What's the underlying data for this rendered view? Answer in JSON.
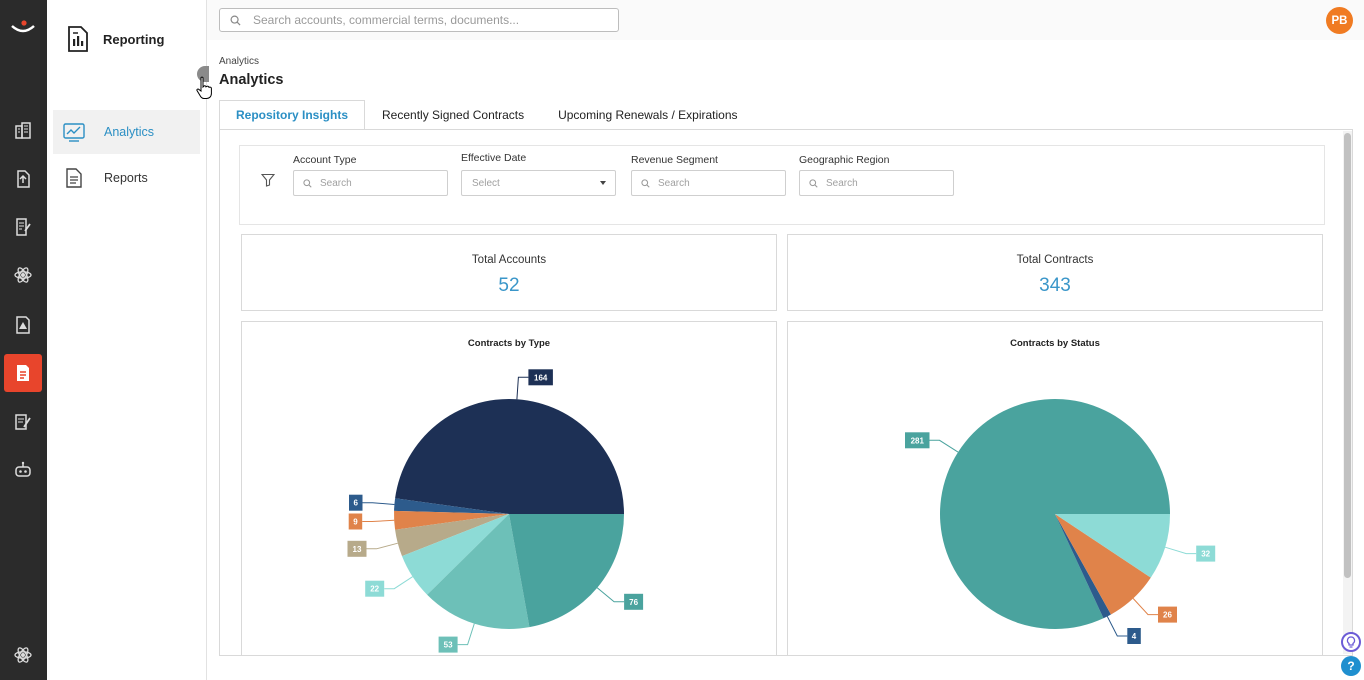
{
  "module": {
    "title": "Reporting",
    "icon": "report-icon"
  },
  "sidebar": {
    "items": [
      {
        "label": "Analytics",
        "icon": "analytics-icon",
        "active": true
      },
      {
        "label": "Reports",
        "icon": "document-icon",
        "active": false
      }
    ]
  },
  "rail": {
    "items": [
      "buildings-icon",
      "upload-icon",
      "contract-edit-icon",
      "settings-atom-icon",
      "alert-document-icon",
      "report-icon",
      "signature-icon",
      "robot-icon"
    ],
    "active_index": 5,
    "bottom_icon": "settings-atom-icon"
  },
  "search": {
    "placeholder": "Search accounts, commercial terms, documents..."
  },
  "user": {
    "initials": "PB"
  },
  "breadcrumb": "Analytics",
  "page_title": "Analytics",
  "tabs": [
    {
      "label": "Repository Insights",
      "active": true
    },
    {
      "label": "Recently Signed Contracts",
      "active": false
    },
    {
      "label": "Upcoming Renewals / Expirations",
      "active": false
    }
  ],
  "filters": {
    "account_type": {
      "label": "Account Type",
      "placeholder": "Search"
    },
    "effective_date": {
      "label": "Effective Date",
      "placeholder": "Select"
    },
    "revenue_segment": {
      "label": "Revenue Segment",
      "placeholder": "Search"
    },
    "geographic_region": {
      "label": "Geographic Region",
      "placeholder": "Search"
    }
  },
  "kpis": {
    "accounts": {
      "label": "Total Accounts",
      "value": "52"
    },
    "contracts": {
      "label": "Total Contracts",
      "value": "343"
    }
  },
  "colors": {
    "accent": "#2b8fc4",
    "brand": "#e8452c",
    "avatar": "#f07b22"
  },
  "chart_data": [
    {
      "type": "pie",
      "title": "Contracts by Type",
      "values": [
        164,
        6,
        9,
        13,
        22,
        53,
        76
      ],
      "colors": [
        "#1d3055",
        "#2d5b8c",
        "#e0834a",
        "#b7aa8a",
        "#8ddbd6",
        "#6dc0b8",
        "#4aa39e"
      ]
    },
    {
      "type": "pie",
      "title": "Contracts by Status",
      "values": [
        281,
        4,
        26,
        32
      ],
      "colors": [
        "#4aa39e",
        "#2d5b8c",
        "#e0834a",
        "#8ddbd6"
      ]
    }
  ]
}
